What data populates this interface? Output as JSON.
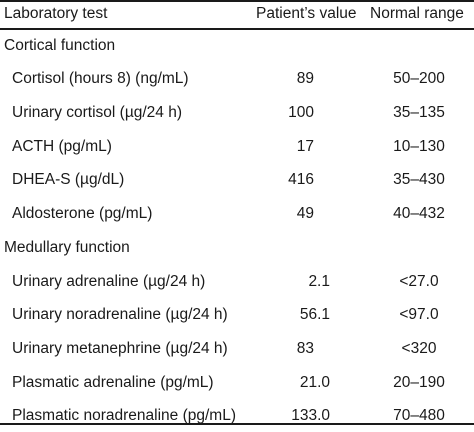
{
  "header": {
    "test": "Laboratory test",
    "value": "Patient’s value",
    "range": "Normal range"
  },
  "sections": [
    {
      "title": "Cortical function",
      "rows": [
        {
          "test": "Cortisol (hours 8) (ng/mL)",
          "value": "89",
          "range": "50–200"
        },
        {
          "test": "Urinary cortisol (µg/24 h)",
          "value": "100",
          "range": "35–135"
        },
        {
          "test": "ACTH (pg/mL)",
          "value": "17",
          "range": "10–130"
        },
        {
          "test": "DHEA-S (µg/dL)",
          "value": "416",
          "range": "35–430"
        },
        {
          "test": "Aldosterone (pg/mL)",
          "value": "49",
          "range": "40–432"
        }
      ]
    },
    {
      "title": "Medullary function",
      "rows": [
        {
          "test": "Urinary adrenaline (µg/24 h)",
          "value": "2.1",
          "range": "<27.0"
        },
        {
          "test": "Urinary noradrenaline (µg/24 h)",
          "value": "56.1",
          "range": "<97.0"
        },
        {
          "test": "Urinary metanephrine (µg/24 h)",
          "value": "83",
          "range": "<320"
        },
        {
          "test": "Plasmatic adrenaline (pg/mL)",
          "value": "21.0",
          "range": "20–190"
        },
        {
          "test": "Plasmatic noradrenaline (pg/mL)",
          "value": "133.0",
          "range": "70–480"
        }
      ]
    }
  ]
}
